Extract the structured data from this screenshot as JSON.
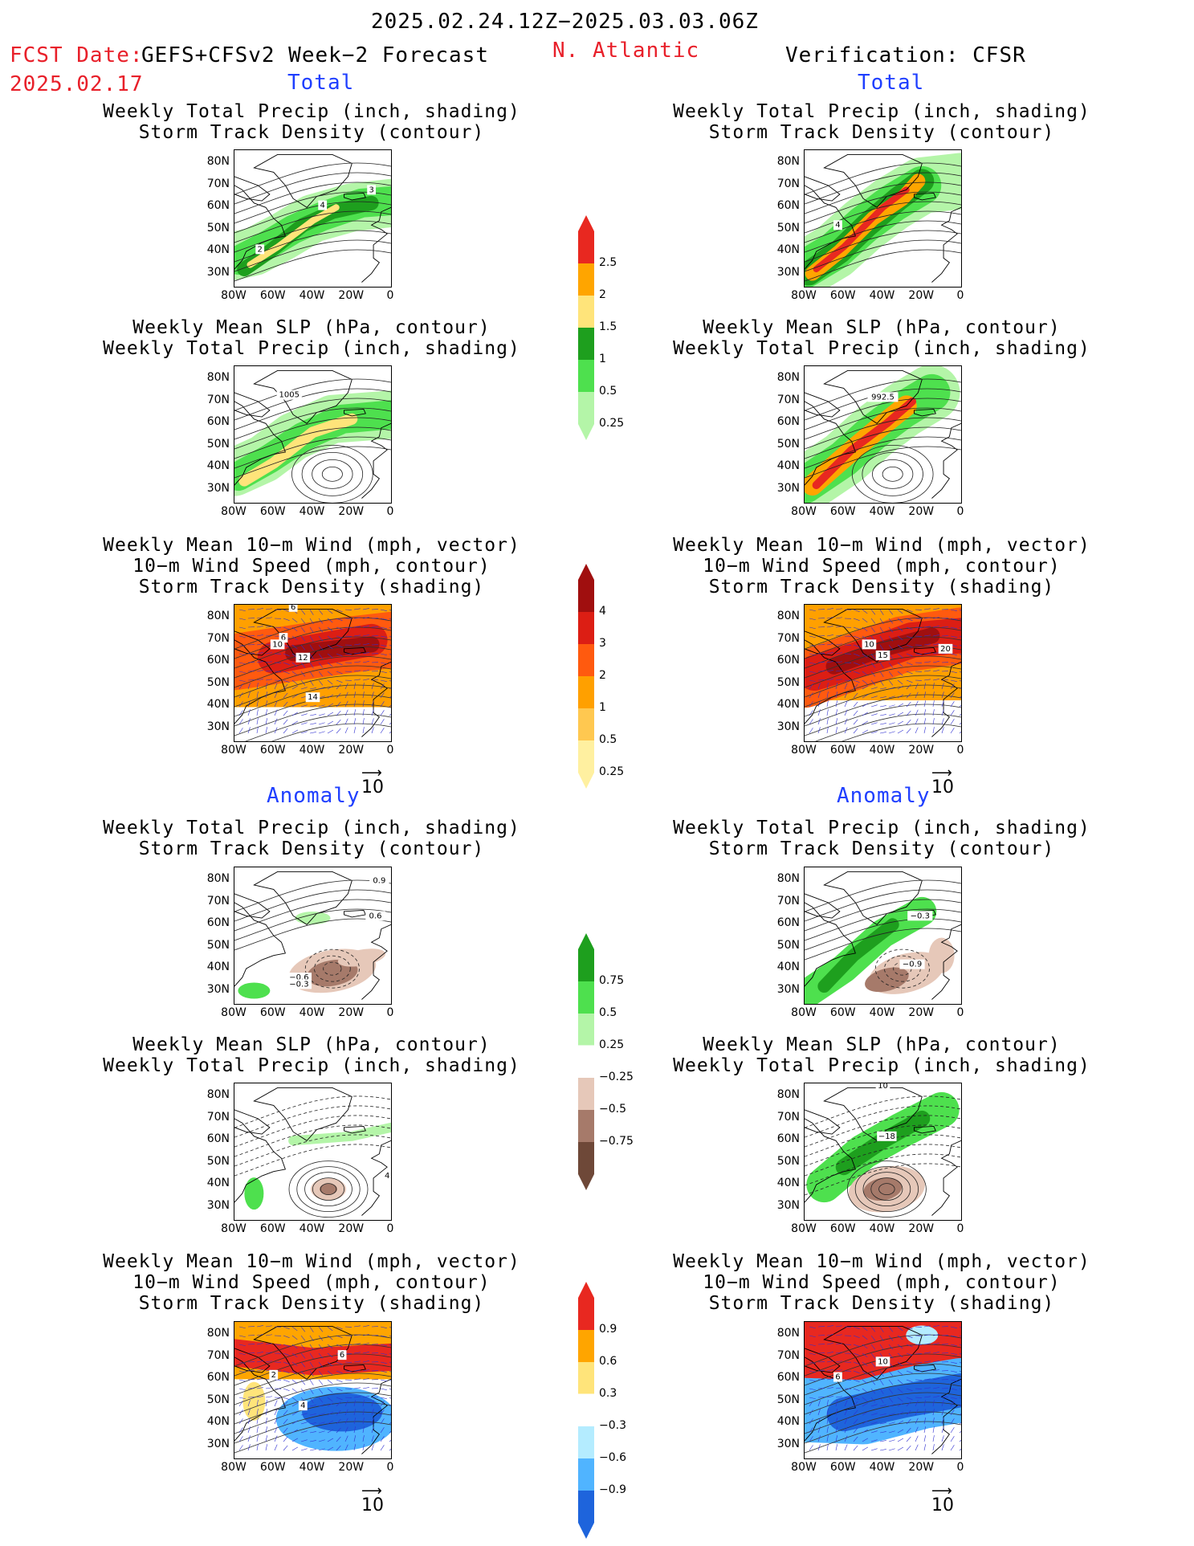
{
  "header": {
    "period": "2025.02.24.12Z−2025.03.03.06Z",
    "fcst_date_label": "FCST Date:",
    "fcst_source": "GEFS+CFSv2 Week−2 Forecast",
    "fcst_date": "2025.02.17",
    "region": "N. Atlantic",
    "verification": "Verification: CFSR"
  },
  "sections": {
    "total": "Total",
    "anomaly": "Anomaly"
  },
  "panel_titles": {
    "precip_track": [
      "Weekly Total Precip (inch, shading)",
      "Storm Track Density (contour)"
    ],
    "slp_precip": [
      "Weekly Mean SLP (hPa, contour)",
      "Weekly Total Precip (inch, shading)"
    ],
    "wind_track": [
      "Weekly Mean 10−m Wind (mph, vector)",
      "10−m Wind Speed (mph, contour)",
      "Storm Track Density (shading)"
    ]
  },
  "axes": {
    "lat_ticks": [
      "80N",
      "70N",
      "60N",
      "50N",
      "40N",
      "30N"
    ],
    "lon_ticks": [
      "80W",
      "60W",
      "40W",
      "20W",
      "0"
    ]
  },
  "vector_reference": "10",
  "contour_labels": {
    "left_total_precip_track": [
      "3",
      "4",
      "2"
    ],
    "right_total_precip_track": [
      "4"
    ],
    "left_total_slp": [
      "1005"
    ],
    "right_total_slp": [
      "992.5"
    ],
    "left_total_wind": [
      "6",
      "6",
      "10",
      "12",
      "14"
    ],
    "right_total_wind": [
      "10",
      "15",
      "20"
    ],
    "left_anom_precip_track": [
      "0.9",
      "0.6",
      "−0.6",
      "−0.3"
    ],
    "right_anom_precip_track": [
      "−0.3",
      "−0.9"
    ],
    "left_anom_slp": [
      "4"
    ],
    "right_anom_slp": [
      "−18",
      "10"
    ],
    "left_anom_wind": [
      "2",
      "6",
      "4"
    ],
    "right_anom_wind": [
      "10",
      "6"
    ]
  },
  "colorbars": {
    "precip_total": {
      "labels": [
        "2.5",
        "2",
        "1.5",
        "1",
        "0.5",
        "0.25"
      ],
      "colors": [
        "#e82820",
        "#ffa500",
        "#ffe47a",
        "#1e9f1e",
        "#4ee04e",
        "#b4f5a8"
      ]
    },
    "track_total": {
      "labels": [
        "4",
        "3",
        "2",
        "1",
        "0.5",
        "0.25"
      ],
      "colors": [
        "#a00f0f",
        "#dc1e14",
        "#ff5a0f",
        "#ffa000",
        "#ffc850",
        "#fff0a0"
      ]
    },
    "precip_anom": {
      "labels": [
        "0.75",
        "0.5",
        "0.25",
        "−0.25",
        "−0.5",
        "−0.75"
      ],
      "colors": [
        "#1e9f1e",
        "#4ee04e",
        "#b4f5a8",
        "#ffffff",
        "#e6c8b9",
        "#a67a6a",
        "#6e4838"
      ]
    },
    "track_anom": {
      "labels": [
        "0.9",
        "0.6",
        "0.3",
        "−0.3",
        "−0.6",
        "−0.9"
      ],
      "colors": [
        "#e82820",
        "#ffa500",
        "#ffe47a",
        "#ffffff",
        "#b4ecff",
        "#50b4ff",
        "#1e64dc"
      ]
    }
  }
}
